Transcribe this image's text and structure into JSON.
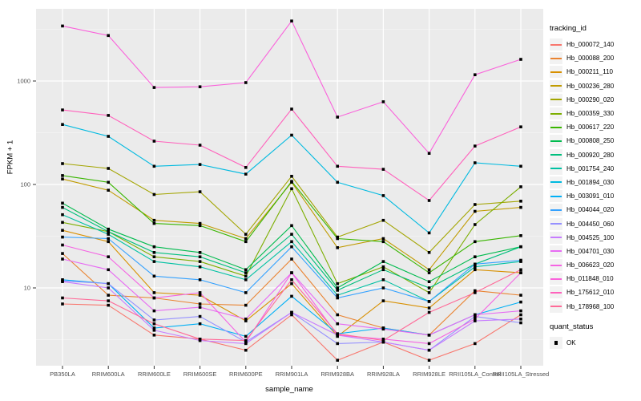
{
  "chart_data": {
    "type": "line",
    "title": "",
    "xlabel": "sample_name",
    "ylabel": "FPKM + 1",
    "y_scale": "log10",
    "y_ticks": [
      10,
      100,
      1000
    ],
    "ylim": [
      1.8,
      5000
    ],
    "grid": true,
    "legend_position": "right",
    "panel_bg": "#EBEBEB",
    "grid_major_color": "#FFFFFF",
    "grid_minor_color": "#F5F5F5",
    "point_color": "#000000",
    "categories": [
      "PB350LA",
      "RRIM600LA",
      "RRIM600LE",
      "RRIM600SE",
      "RRIM600PE",
      "RRIM901LA",
      "RRIM928BA",
      "RRIM928LA",
      "RRIM928LE",
      "RRII105LA_Control",
      "RRII105LA_Stressed"
    ],
    "series": [
      {
        "name": "Hb_000072_140",
        "color": "#F8766D",
        "values": [
          7,
          6.8,
          3.5,
          3.2,
          2.5,
          5.5,
          2,
          3,
          2,
          2.9,
          5.5
        ]
      },
      {
        "name": "Hb_000088_200",
        "color": "#EA8331",
        "values": [
          21.5,
          8.5,
          8,
          7,
          6.8,
          19,
          5.5,
          4.1,
          3.5,
          9.4,
          8.5
        ]
      },
      {
        "name": "Hb_000211_110",
        "color": "#D89000",
        "values": [
          36,
          28,
          9,
          8.5,
          4.8,
          11,
          3.4,
          7.5,
          6.4,
          15,
          14
        ]
      },
      {
        "name": "Hb_000236_280",
        "color": "#C09B00",
        "values": [
          113,
          88,
          45,
          42,
          30,
          105,
          24.5,
          30,
          15,
          55,
          60
        ]
      },
      {
        "name": "Hb_000290_020",
        "color": "#A3A500",
        "values": [
          159,
          143,
          80,
          85,
          33,
          120,
          31,
          45,
          22,
          64,
          69
        ]
      },
      {
        "name": "Hb_000359_330",
        "color": "#7CAE00",
        "values": [
          43,
          35,
          20,
          18,
          13,
          91,
          11,
          16,
          9,
          41,
          95
        ]
      },
      {
        "name": "Hb_000617_220",
        "color": "#39B600",
        "values": [
          122,
          105,
          42,
          40,
          28,
          107,
          30,
          28,
          14,
          28,
          32
        ]
      },
      {
        "name": "Hb_000808_250",
        "color": "#00BB4E",
        "values": [
          66,
          37,
          25,
          22,
          15,
          40,
          10,
          18,
          11.5,
          20,
          25
        ]
      },
      {
        "name": "Hb_000920_280",
        "color": "#00BF7D",
        "values": [
          60,
          35,
          22,
          20,
          14,
          33,
          9.5,
          15,
          10,
          17,
          25
        ]
      },
      {
        "name": "Hb_001754_240",
        "color": "#00C1A3",
        "values": [
          51,
          33,
          18,
          16,
          12,
          28,
          8.5,
          12,
          7.4,
          16,
          18
        ]
      },
      {
        "name": "Hb_001894_030",
        "color": "#00BAE0",
        "values": [
          380,
          292,
          150,
          156,
          126,
          300,
          105,
          78,
          34,
          162,
          150
        ]
      },
      {
        "name": "Hb_003091_010",
        "color": "#00B0F6",
        "values": [
          12,
          11,
          4.1,
          4.5,
          3.4,
          8.3,
          3.6,
          4.1,
          3.5,
          5.5,
          7.3
        ]
      },
      {
        "name": "Hb_004044_020",
        "color": "#35A2FF",
        "values": [
          31,
          30,
          13,
          12,
          9,
          25,
          8,
          10,
          7.4,
          17,
          18.5
        ]
      },
      {
        "name": "Hb_004450_060",
        "color": "#9590FF",
        "values": [
          11.7,
          11,
          4.9,
          5.3,
          3,
          5.8,
          2.9,
          3,
          2.5,
          5.3,
          4.6
        ]
      },
      {
        "name": "Hb_004525_100",
        "color": "#C77CFF",
        "values": [
          11.5,
          10,
          3.9,
          3.1,
          2.9,
          5.8,
          3.5,
          3,
          2.5,
          4.8,
          5
        ]
      },
      {
        "name": "Hb_004701_030",
        "color": "#E76BF3",
        "values": [
          19,
          15,
          6,
          6.5,
          5,
          14,
          4.5,
          4,
          3.5,
          5.5,
          6
        ]
      },
      {
        "name": "Hb_006623_020",
        "color": "#F564E3",
        "values": [
          26,
          20,
          8,
          9,
          3,
          14,
          3.5,
          3.2,
          2.9,
          5,
          14
        ]
      },
      {
        "name": "Hb_011848_010",
        "color": "#FA62DB",
        "values": [
          3400,
          2750,
          865,
          880,
          965,
          3800,
          448,
          630,
          200,
          1150,
          1620
        ]
      },
      {
        "name": "Hb_175612_010",
        "color": "#FF62BC",
        "values": [
          525,
          465,
          262,
          240,
          146,
          535,
          150,
          140,
          70,
          235,
          360
        ]
      },
      {
        "name": "Hb_178968_100",
        "color": "#FF6A98",
        "values": [
          8,
          7.5,
          4.5,
          3.2,
          3.1,
          12,
          3.6,
          3.1,
          5.8,
          9,
          15
        ]
      }
    ]
  },
  "legend": {
    "tracking_title": "tracking_id",
    "quant_title": "quant_status",
    "quant_items": [
      {
        "label": "OK"
      }
    ]
  }
}
